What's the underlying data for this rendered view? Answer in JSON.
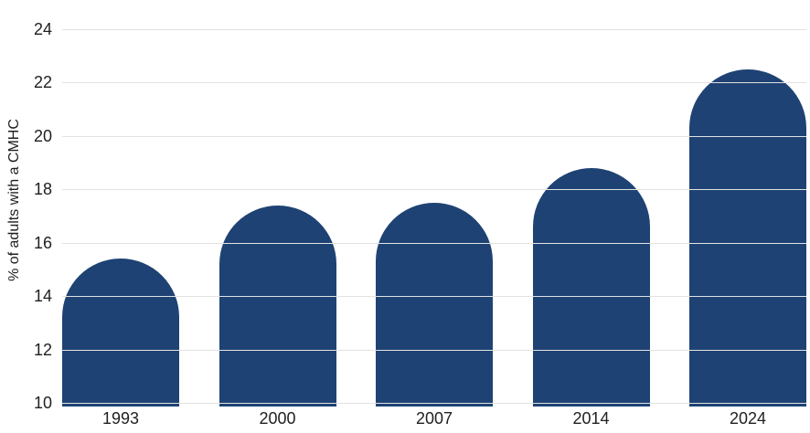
{
  "chart_data": {
    "type": "bar",
    "title": "",
    "categories": [
      "1993",
      "2000",
      "2007",
      "2014",
      "2024"
    ],
    "values": [
      15.4,
      17.4,
      17.5,
      18.8,
      22.5
    ],
    "xlabel": "",
    "ylabel": "% of adults with a CMHC",
    "ylim": [
      10,
      24
    ],
    "yticks": [
      10,
      12,
      14,
      16,
      18,
      20,
      22,
      24
    ],
    "bar_style": "rounded-top-pill",
    "grid": "horizontal",
    "legend_position": "none",
    "colors": {
      "bar": "#1e4273",
      "gridline": "#e2e2e2",
      "text": "#1f1f1f",
      "background": "#ffffff"
    }
  }
}
